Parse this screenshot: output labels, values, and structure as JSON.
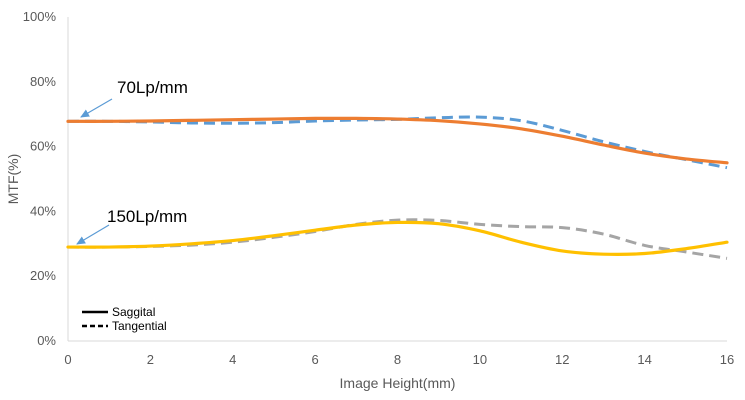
{
  "chart_data": {
    "type": "line",
    "xlabel": "Image Height(mm)",
    "ylabel": "MTF(%)",
    "xlim": [
      0,
      16
    ],
    "ylim": [
      0,
      100
    ],
    "x_ticks": [
      0,
      2,
      4,
      6,
      8,
      10,
      12,
      14,
      16
    ],
    "y_ticks": [
      0,
      20,
      40,
      60,
      80,
      100
    ],
    "y_tick_labels": [
      "0%",
      "20%",
      "40%",
      "60%",
      "80%",
      "100%"
    ],
    "grid": false,
    "legend_placement": "bottom-left",
    "legend": [
      {
        "label": "Saggital",
        "style": "solid"
      },
      {
        "label": "Tangential",
        "style": "dashed"
      }
    ],
    "annotations": [
      {
        "text": "70Lp/mm",
        "target": [
          0,
          67.8
        ]
      },
      {
        "text": "150Lp/mm",
        "target": [
          0,
          29
        ]
      }
    ],
    "series": [
      {
        "style": "solid",
        "color": "#ED7D31",
        "x": [
          0,
          1,
          2,
          3,
          4,
          5,
          6,
          7,
          8,
          9,
          10,
          11,
          12,
          13,
          14,
          15,
          16
        ],
        "y": [
          67.8,
          67.8,
          67.9,
          68.1,
          68.3,
          68.5,
          68.7,
          68.7,
          68.5,
          68.0,
          67.0,
          65.5,
          63.2,
          60.5,
          58.0,
          56.2,
          55.0
        ]
      },
      {
        "style": "dashed",
        "color": "#5B9BD5",
        "x": [
          0,
          1,
          2,
          3,
          4,
          5,
          6,
          7,
          8,
          9,
          10,
          11,
          12,
          13,
          14,
          15,
          16
        ],
        "y": [
          67.8,
          67.8,
          67.6,
          67.3,
          67.2,
          67.4,
          67.9,
          68.2,
          68.4,
          68.9,
          69.1,
          68.0,
          65.0,
          61.5,
          58.5,
          56.0,
          53.5
        ]
      },
      {
        "style": "solid",
        "color": "#FFC000",
        "x": [
          0,
          1,
          2,
          3,
          4,
          5,
          6,
          7,
          8,
          9,
          10,
          11,
          12,
          13,
          14,
          15,
          16
        ],
        "y": [
          29.0,
          29.0,
          29.3,
          30.0,
          31.0,
          32.5,
          34.2,
          35.8,
          36.6,
          36.2,
          34.0,
          30.5,
          27.8,
          26.8,
          27.0,
          28.5,
          30.5
        ]
      },
      {
        "style": "dashed",
        "color": "#A5A5A5",
        "x": [
          0,
          1,
          2,
          3,
          4,
          5,
          6,
          7,
          8,
          9,
          10,
          11,
          12,
          13,
          14,
          15,
          16
        ],
        "y": [
          29.0,
          29.0,
          29.2,
          29.6,
          30.5,
          32.0,
          33.8,
          36.0,
          37.3,
          37.2,
          36.0,
          35.3,
          35.0,
          33.0,
          29.5,
          27.5,
          25.5
        ]
      }
    ]
  }
}
